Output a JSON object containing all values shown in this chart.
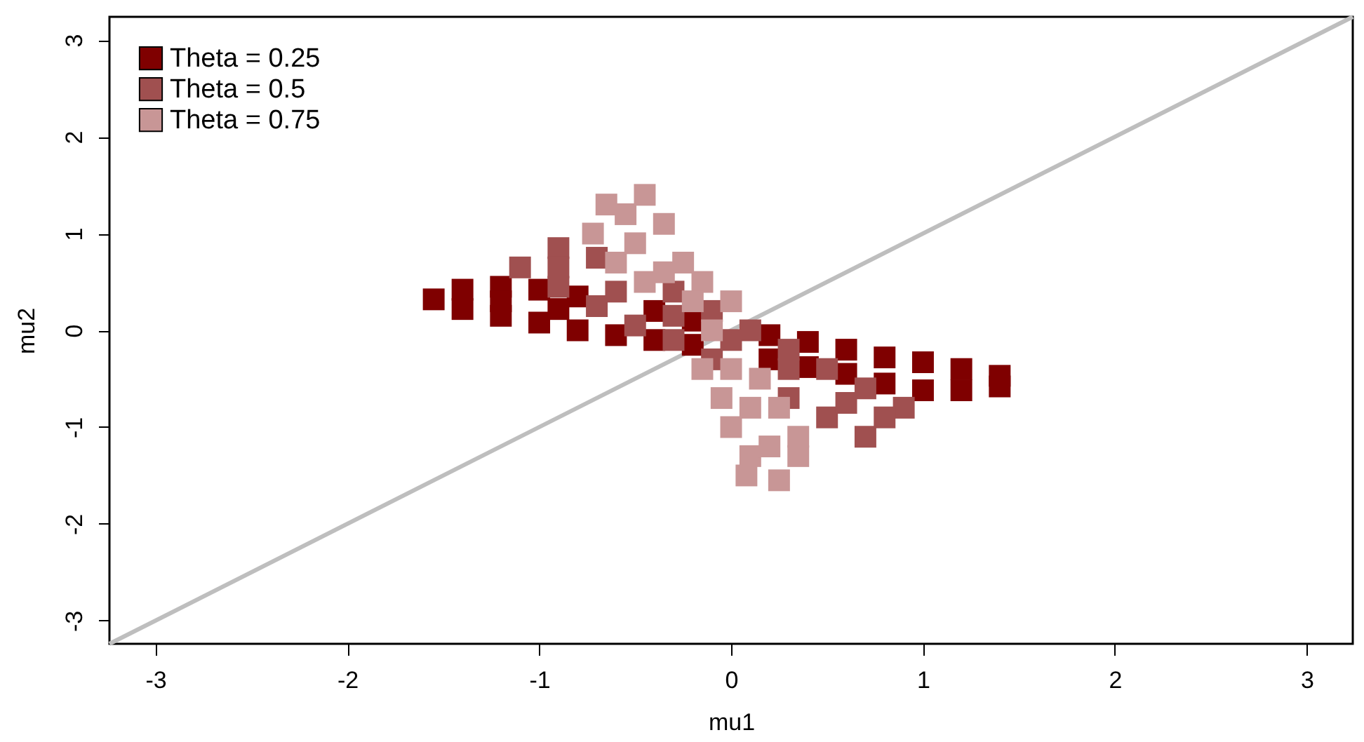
{
  "chart_data": {
    "type": "scatter",
    "xlabel": "mu1",
    "ylabel": "mu2",
    "xlim": [
      -3.24,
      3.24
    ],
    "ylim": [
      -3.24,
      3.24
    ],
    "xticks": [
      -3,
      -2,
      -1,
      0,
      1,
      2,
      3
    ],
    "yticks": [
      -3,
      -2,
      -1,
      0,
      1,
      2,
      3
    ],
    "grid": false,
    "legend": "top left",
    "marker": "square",
    "series": [
      {
        "type": "line",
        "color": "#bebebe",
        "marker": "none",
        "x": [
          -3.24,
          3.24
        ],
        "values": [
          -3.24,
          3.24
        ]
      },
      {
        "name": "Theta = 0.25",
        "color": "#7f0000",
        "x": [
          -1.55,
          -1.4,
          -1.2,
          -1.0,
          -0.8,
          -0.4,
          -0.2,
          0,
          0.2,
          0.4,
          0.6,
          0.8,
          1.0,
          1.2,
          1.4,
          -1.4,
          -1.2,
          -1.0,
          -0.8,
          -0.6,
          -0.4,
          -0.2,
          0.2,
          0.4,
          0.6,
          0.8,
          1.0,
          1.2,
          1.4,
          -1.2,
          -0.9
        ],
        "values": [
          0.32,
          0.42,
          0.45,
          0.42,
          0.35,
          0.2,
          0.1,
          null,
          -0.05,
          -0.12,
          -0.2,
          -0.28,
          -0.33,
          -0.4,
          -0.47,
          0.22,
          0.15,
          0.08,
          0.0,
          -0.05,
          -0.1,
          -0.15,
          -0.3,
          -0.38,
          -0.45,
          -0.55,
          -0.62,
          -0.62,
          -0.58,
          0.3,
          0.22
        ]
      },
      {
        "name": "Theta = 0.5",
        "color": "#a05050",
        "x": [
          -0.9,
          -0.7,
          -0.5,
          -0.3,
          -0.1,
          0.1,
          0.3,
          0.5,
          0.7,
          0.9,
          -1.1,
          -0.9,
          -0.7,
          -0.5,
          -0.3,
          -0.1,
          0.1,
          0.3,
          0.5,
          0.7,
          -0.9,
          -0.6,
          -0.3,
          0,
          0.3,
          0.6,
          0.8
        ],
        "values": [
          0.85,
          0.75,
          null,
          0.4,
          0.2,
          0.0,
          -0.2,
          -0.4,
          -0.6,
          -0.8,
          0.65,
          0.45,
          0.25,
          0.05,
          -0.1,
          -0.3,
          null,
          -0.7,
          -0.9,
          -1.1,
          0.65,
          0.4,
          0.15,
          -0.1,
          -0.4,
          -0.75,
          -0.9
        ]
      },
      {
        "name": "Theta = 0.75",
        "color": "#c89696",
        "x": [
          -0.65,
          -0.72,
          -0.6,
          -0.45,
          -0.15,
          -0.05,
          0.0,
          0.1,
          0.08,
          -0.45,
          -0.35,
          -0.25,
          -0.15,
          0.0,
          0.15,
          0.25,
          0.35,
          0.35,
          0.25,
          -0.55,
          -0.5,
          -0.35,
          -0.2,
          -0.1,
          0.0,
          0.1,
          0.2
        ],
        "values": [
          1.3,
          1.0,
          0.7,
          0.5,
          -0.4,
          -0.7,
          -1.0,
          -1.3,
          -1.5,
          1.4,
          1.1,
          0.7,
          0.5,
          0.3,
          -0.5,
          -0.8,
          -1.1,
          -1.3,
          -1.55,
          1.2,
          0.9,
          0.6,
          0.3,
          0.0,
          -0.4,
          -0.8,
          -1.2
        ]
      }
    ]
  }
}
